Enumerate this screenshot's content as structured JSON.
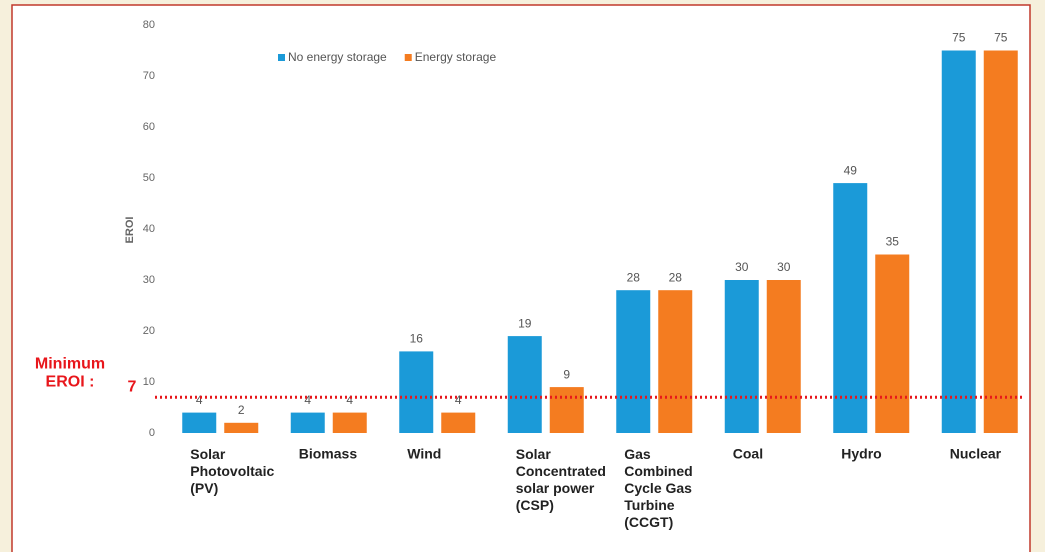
{
  "chart_data": {
    "type": "bar",
    "y_label": "EROI",
    "categories": [
      "Solar\nPhotovoltaic\n(PV)",
      "Biomass",
      "Wind",
      "Solar\nConcentrated\nsolar power\n(CSP)",
      "Gas\nCombined\nCycle Gas\nTurbine\n(CCGT)",
      "Coal",
      "Hydro",
      "Nuclear"
    ],
    "series": [
      {
        "name": "No energy storage",
        "color": "#1b9ad8",
        "values": [
          4,
          4,
          16,
          19,
          28,
          30,
          49,
          75
        ]
      },
      {
        "name": "Energy storage",
        "color": "#f47c20",
        "values": [
          2,
          4,
          4,
          9,
          28,
          30,
          35,
          75
        ]
      }
    ],
    "ylim": [
      0,
      80
    ],
    "yticks": [
      0,
      10,
      20,
      30,
      40,
      50,
      60,
      70,
      80
    ],
    "grid": false,
    "legend": "top-left",
    "threshold": {
      "value": 7,
      "label": "Minimum\nEROI :",
      "color": "#e8161b"
    }
  }
}
